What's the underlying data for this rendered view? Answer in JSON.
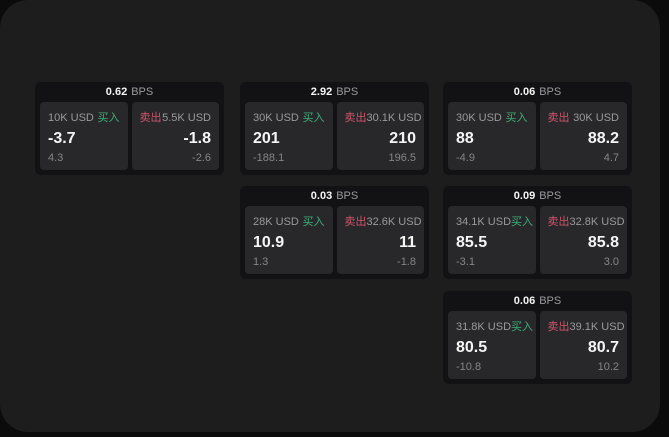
{
  "theme": {
    "page_bg": "#0b0b0b",
    "panel_bg": "#1d1d1e",
    "card_bg": "#121214",
    "tile_bg": "#28282a",
    "text_primary": "#f5f5f5",
    "text_secondary": "#9a9a9e",
    "text_dim": "#85858a",
    "buy_color": "#3eae78",
    "sell_color": "#d0546a"
  },
  "labels": {
    "bps_unit": "BPS",
    "buy": "买入",
    "sell": "卖出"
  },
  "cards": [
    {
      "bps": "0.62",
      "col": 0,
      "row": 0,
      "buy": {
        "size": "10K USD",
        "price": "-3.7",
        "sub": "4.3"
      },
      "sell": {
        "size": "5.5K USD",
        "price": "-1.8",
        "sub": "-2.6"
      }
    },
    {
      "bps": "2.92",
      "col": 1,
      "row": 0,
      "buy": {
        "size": "30K USD",
        "price": "201",
        "sub": "-188.1"
      },
      "sell": {
        "size": "30.1K USD",
        "price": "210",
        "sub": "196.5"
      }
    },
    {
      "bps": "0.06",
      "col": 2,
      "row": 0,
      "buy": {
        "size": "30K USD",
        "price": "88",
        "sub": "-4.9"
      },
      "sell": {
        "size": "30K USD",
        "price": "88.2",
        "sub": "4.7"
      }
    },
    {
      "bps": "0.03",
      "col": 1,
      "row": 1,
      "buy": {
        "size": "28K USD",
        "price": "10.9",
        "sub": "1.3"
      },
      "sell": {
        "size": "32.6K USD",
        "price": "11",
        "sub": "-1.8"
      }
    },
    {
      "bps": "0.09",
      "col": 2,
      "row": 1,
      "buy": {
        "size": "34.1K USD",
        "price": "85.5",
        "sub": "-3.1"
      },
      "sell": {
        "size": "32.8K USD",
        "price": "85.8",
        "sub": "3.0"
      }
    },
    {
      "bps": "0.06",
      "col": 2,
      "row": 2,
      "buy": {
        "size": "31.8K USD",
        "price": "80.5",
        "sub": "-10.8"
      },
      "sell": {
        "size": "39.1K USD",
        "price": "80.7",
        "sub": "10.2"
      }
    }
  ]
}
